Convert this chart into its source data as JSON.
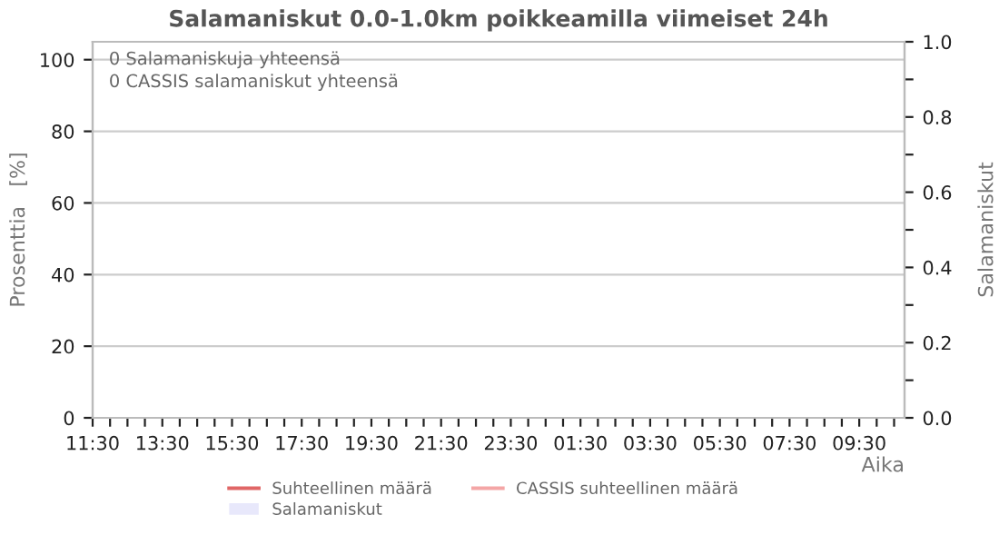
{
  "chart_data": {
    "type": "line",
    "title": "Salamaniskut 0.0-1.0km poikkeamilla viimeiset 24h",
    "xlabel": "Aika",
    "ylabel": "Prosenttia   [%]",
    "y2label": "Salamaniskut",
    "annotations": [
      "0 Salamaniskuja yhteensä",
      "0 CASSIS salamaniskut yhteensä"
    ],
    "categories": [
      "11:30",
      null,
      null,
      null,
      "13:30",
      null,
      null,
      null,
      "15:30",
      null,
      null,
      null,
      "17:30",
      null,
      null,
      null,
      "19:30",
      null,
      null,
      null,
      "21:30",
      null,
      null,
      null,
      "23:30",
      null,
      null,
      null,
      "01:30",
      null,
      null,
      null,
      "03:30",
      null,
      null,
      null,
      "05:30",
      null,
      null,
      null,
      "07:30",
      null,
      null,
      null,
      "09:30",
      null,
      null
    ],
    "series": [
      {
        "name": "Suhteellinen määrä",
        "color": "#e06666",
        "values": [
          null,
          null,
          null,
          null,
          null,
          null,
          null,
          null,
          null,
          null,
          null,
          null,
          null,
          null,
          null,
          null,
          null,
          null,
          null,
          null,
          null,
          null,
          null,
          null,
          null,
          null,
          null,
          null,
          null,
          null,
          null,
          null,
          null,
          null,
          null,
          null,
          null,
          null,
          null,
          null,
          null,
          null,
          null,
          null,
          null,
          null,
          null
        ]
      },
      {
        "name": "CASSIS suhteellinen määrä",
        "color": "#f4a6a6",
        "values": [
          null,
          null,
          null,
          null,
          null,
          null,
          null,
          null,
          null,
          null,
          null,
          null,
          null,
          null,
          null,
          null,
          null,
          null,
          null,
          null,
          null,
          null,
          null,
          null,
          null,
          null,
          null,
          null,
          null,
          null,
          null,
          null,
          null,
          null,
          null,
          null,
          null,
          null,
          null,
          null,
          null,
          null,
          null,
          null,
          null,
          null,
          null
        ]
      },
      {
        "name": "Salamaniskut",
        "color": "#e8e8fb",
        "type": "bar",
        "values": [
          null,
          null,
          null,
          null,
          null,
          null,
          null,
          null,
          null,
          null,
          null,
          null,
          null,
          null,
          null,
          null,
          null,
          null,
          null,
          null,
          null,
          null,
          null,
          null,
          null,
          null,
          null,
          null,
          null,
          null,
          null,
          null,
          null,
          null,
          null,
          null,
          null,
          null,
          null,
          null,
          null,
          null,
          null,
          null,
          null,
          null,
          null
        ]
      }
    ],
    "ylim": [
      0,
      105
    ],
    "yticks": [
      0,
      20,
      40,
      60,
      80,
      100
    ],
    "y2lim": [
      0,
      1.0
    ],
    "y2ticks": [
      {
        "value": 0,
        "label": "0.0"
      },
      {
        "value": 0.1,
        "label": null
      },
      {
        "value": 0.2,
        "label": "0.2"
      },
      {
        "value": 0.3,
        "label": null
      },
      {
        "value": 0.4,
        "label": "0.4"
      },
      {
        "value": 0.5,
        "label": null
      },
      {
        "value": 0.6,
        "label": "0.6"
      },
      {
        "value": 0.7,
        "label": null
      },
      {
        "value": 0.8,
        "label": "0.8"
      },
      {
        "value": 0.9,
        "label": null
      },
      {
        "value": 1.0,
        "label": "1.0"
      }
    ],
    "grid": "y",
    "legend": "bottom"
  }
}
